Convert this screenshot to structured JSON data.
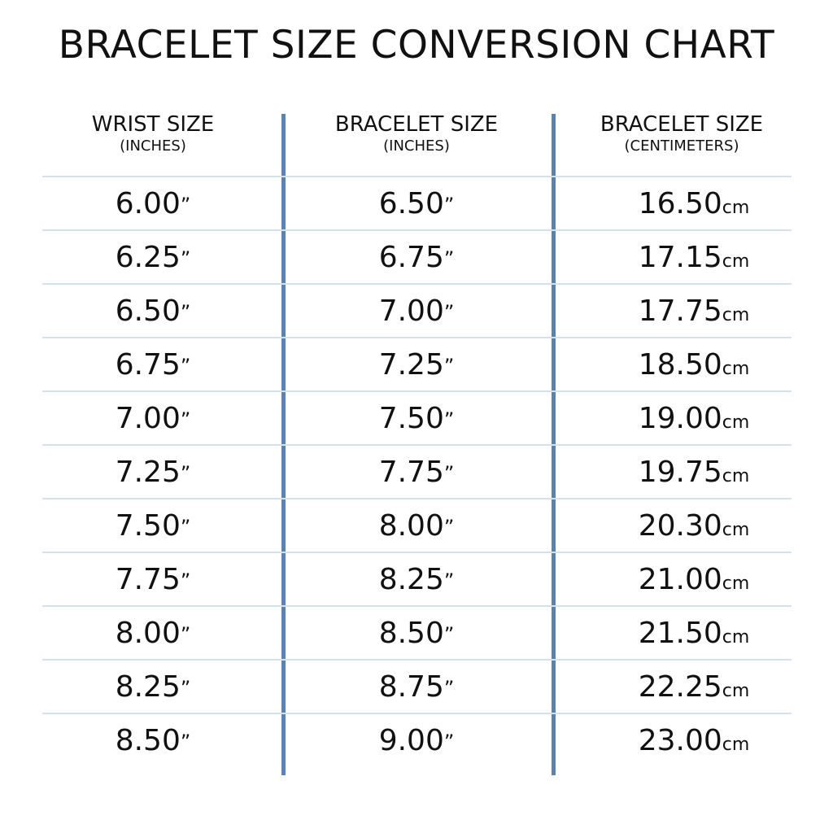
{
  "chart_data": {
    "type": "table",
    "title": "BRACELET SIZE CONVERSION CHART",
    "columns": [
      {
        "label": "WRIST SIZE",
        "sublabel": "(INCHES)",
        "unit": "”"
      },
      {
        "label": "BRACELET SIZE",
        "sublabel": "(INCHES)",
        "unit": "”"
      },
      {
        "label": "BRACELET SIZE",
        "sublabel": "(CENTIMETERS)",
        "unit": "cm"
      }
    ],
    "rows": [
      [
        "6.00",
        "6.50",
        "16.50"
      ],
      [
        "6.25",
        "6.75",
        "17.15"
      ],
      [
        "6.50",
        "7.00",
        "17.75"
      ],
      [
        "6.75",
        "7.25",
        "18.50"
      ],
      [
        "7.00",
        "7.50",
        "19.00"
      ],
      [
        "7.25",
        "7.75",
        "19.75"
      ],
      [
        "7.50",
        "8.00",
        "20.30"
      ],
      [
        "7.75",
        "8.25",
        "21.00"
      ],
      [
        "8.00",
        "8.50",
        "21.50"
      ],
      [
        "8.25",
        "8.75",
        "22.25"
      ],
      [
        "8.50",
        "9.00",
        "23.00"
      ]
    ],
    "colors": {
      "divider": "#5b84ad",
      "row_line": "#d6e2ea",
      "text": "#111111"
    }
  }
}
